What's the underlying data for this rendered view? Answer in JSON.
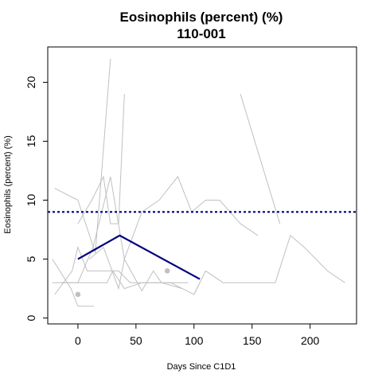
{
  "chart_data": {
    "type": "line",
    "title": "Eosinophils (percent) (%)",
    "subtitle": "110-001",
    "xlabel": "Days Since C1D1",
    "ylabel": "Eosinophils (percent) (%)",
    "xlim": [
      -26,
      240
    ],
    "ylim": [
      -0.5,
      23
    ],
    "xticks": [
      0,
      50,
      100,
      150,
      200
    ],
    "yticks": [
      0,
      5,
      10,
      15,
      20
    ],
    "reference_line": {
      "y": 9,
      "style": "dotted",
      "color": "#000080"
    },
    "highlight": {
      "color": "#000080",
      "points": [
        [
          0,
          5
        ],
        [
          36,
          7
        ],
        [
          105,
          3.3
        ]
      ]
    },
    "highlight_points": {
      "color": "#c0c0c0",
      "points": [
        [
          0,
          2
        ],
        [
          77,
          4
        ]
      ]
    },
    "background_color": "#c0c0c0",
    "background_series": [
      [
        [
          -20,
          11
        ],
        [
          0,
          10
        ],
        [
          15,
          5.5
        ],
        [
          28,
          22
        ]
      ],
      [
        [
          -22,
          5
        ],
        [
          -6,
          2.5
        ],
        [
          0,
          1
        ],
        [
          14,
          1
        ]
      ],
      [
        [
          -22,
          3
        ],
        [
          0,
          3
        ],
        [
          13,
          6
        ],
        [
          28,
          12
        ],
        [
          40,
          5
        ],
        [
          55,
          9
        ],
        [
          70,
          10
        ],
        [
          86,
          12
        ],
        [
          98,
          9
        ],
        [
          110,
          10
        ],
        [
          122,
          10
        ],
        [
          140,
          8
        ],
        [
          155,
          7
        ]
      ],
      [
        [
          -20,
          2
        ],
        [
          -5,
          4
        ],
        [
          0,
          6
        ],
        [
          8,
          4
        ],
        [
          20,
          4
        ],
        [
          35,
          4
        ],
        [
          45,
          3
        ],
        [
          80,
          3
        ],
        [
          100,
          2
        ],
        [
          105,
          3
        ]
      ],
      [
        [
          0,
          8
        ],
        [
          12,
          10
        ],
        [
          22,
          12
        ],
        [
          28,
          8
        ],
        [
          35,
          8
        ],
        [
          40,
          19
        ]
      ],
      [
        [
          -15,
          3
        ],
        [
          5,
          3
        ],
        [
          25,
          3
        ],
        [
          30,
          4
        ],
        [
          40,
          2.5
        ],
        [
          55,
          3
        ],
        [
          75,
          3
        ],
        [
          95,
          3
        ]
      ],
      [
        [
          10,
          5
        ],
        [
          22,
          6
        ],
        [
          35,
          2.5
        ],
        [
          40,
          5
        ],
        [
          55,
          2.3
        ],
        [
          65,
          4
        ],
        [
          72,
          3
        ],
        [
          90,
          2.5
        ]
      ],
      [
        [
          100,
          2
        ],
        [
          110,
          4
        ],
        [
          125,
          3
        ],
        [
          170,
          3
        ],
        [
          183,
          7
        ],
        [
          195,
          6
        ],
        [
          215,
          4
        ],
        [
          230,
          3
        ]
      ],
      [
        [
          140,
          19
        ],
        [
          174,
          8
        ]
      ]
    ]
  }
}
